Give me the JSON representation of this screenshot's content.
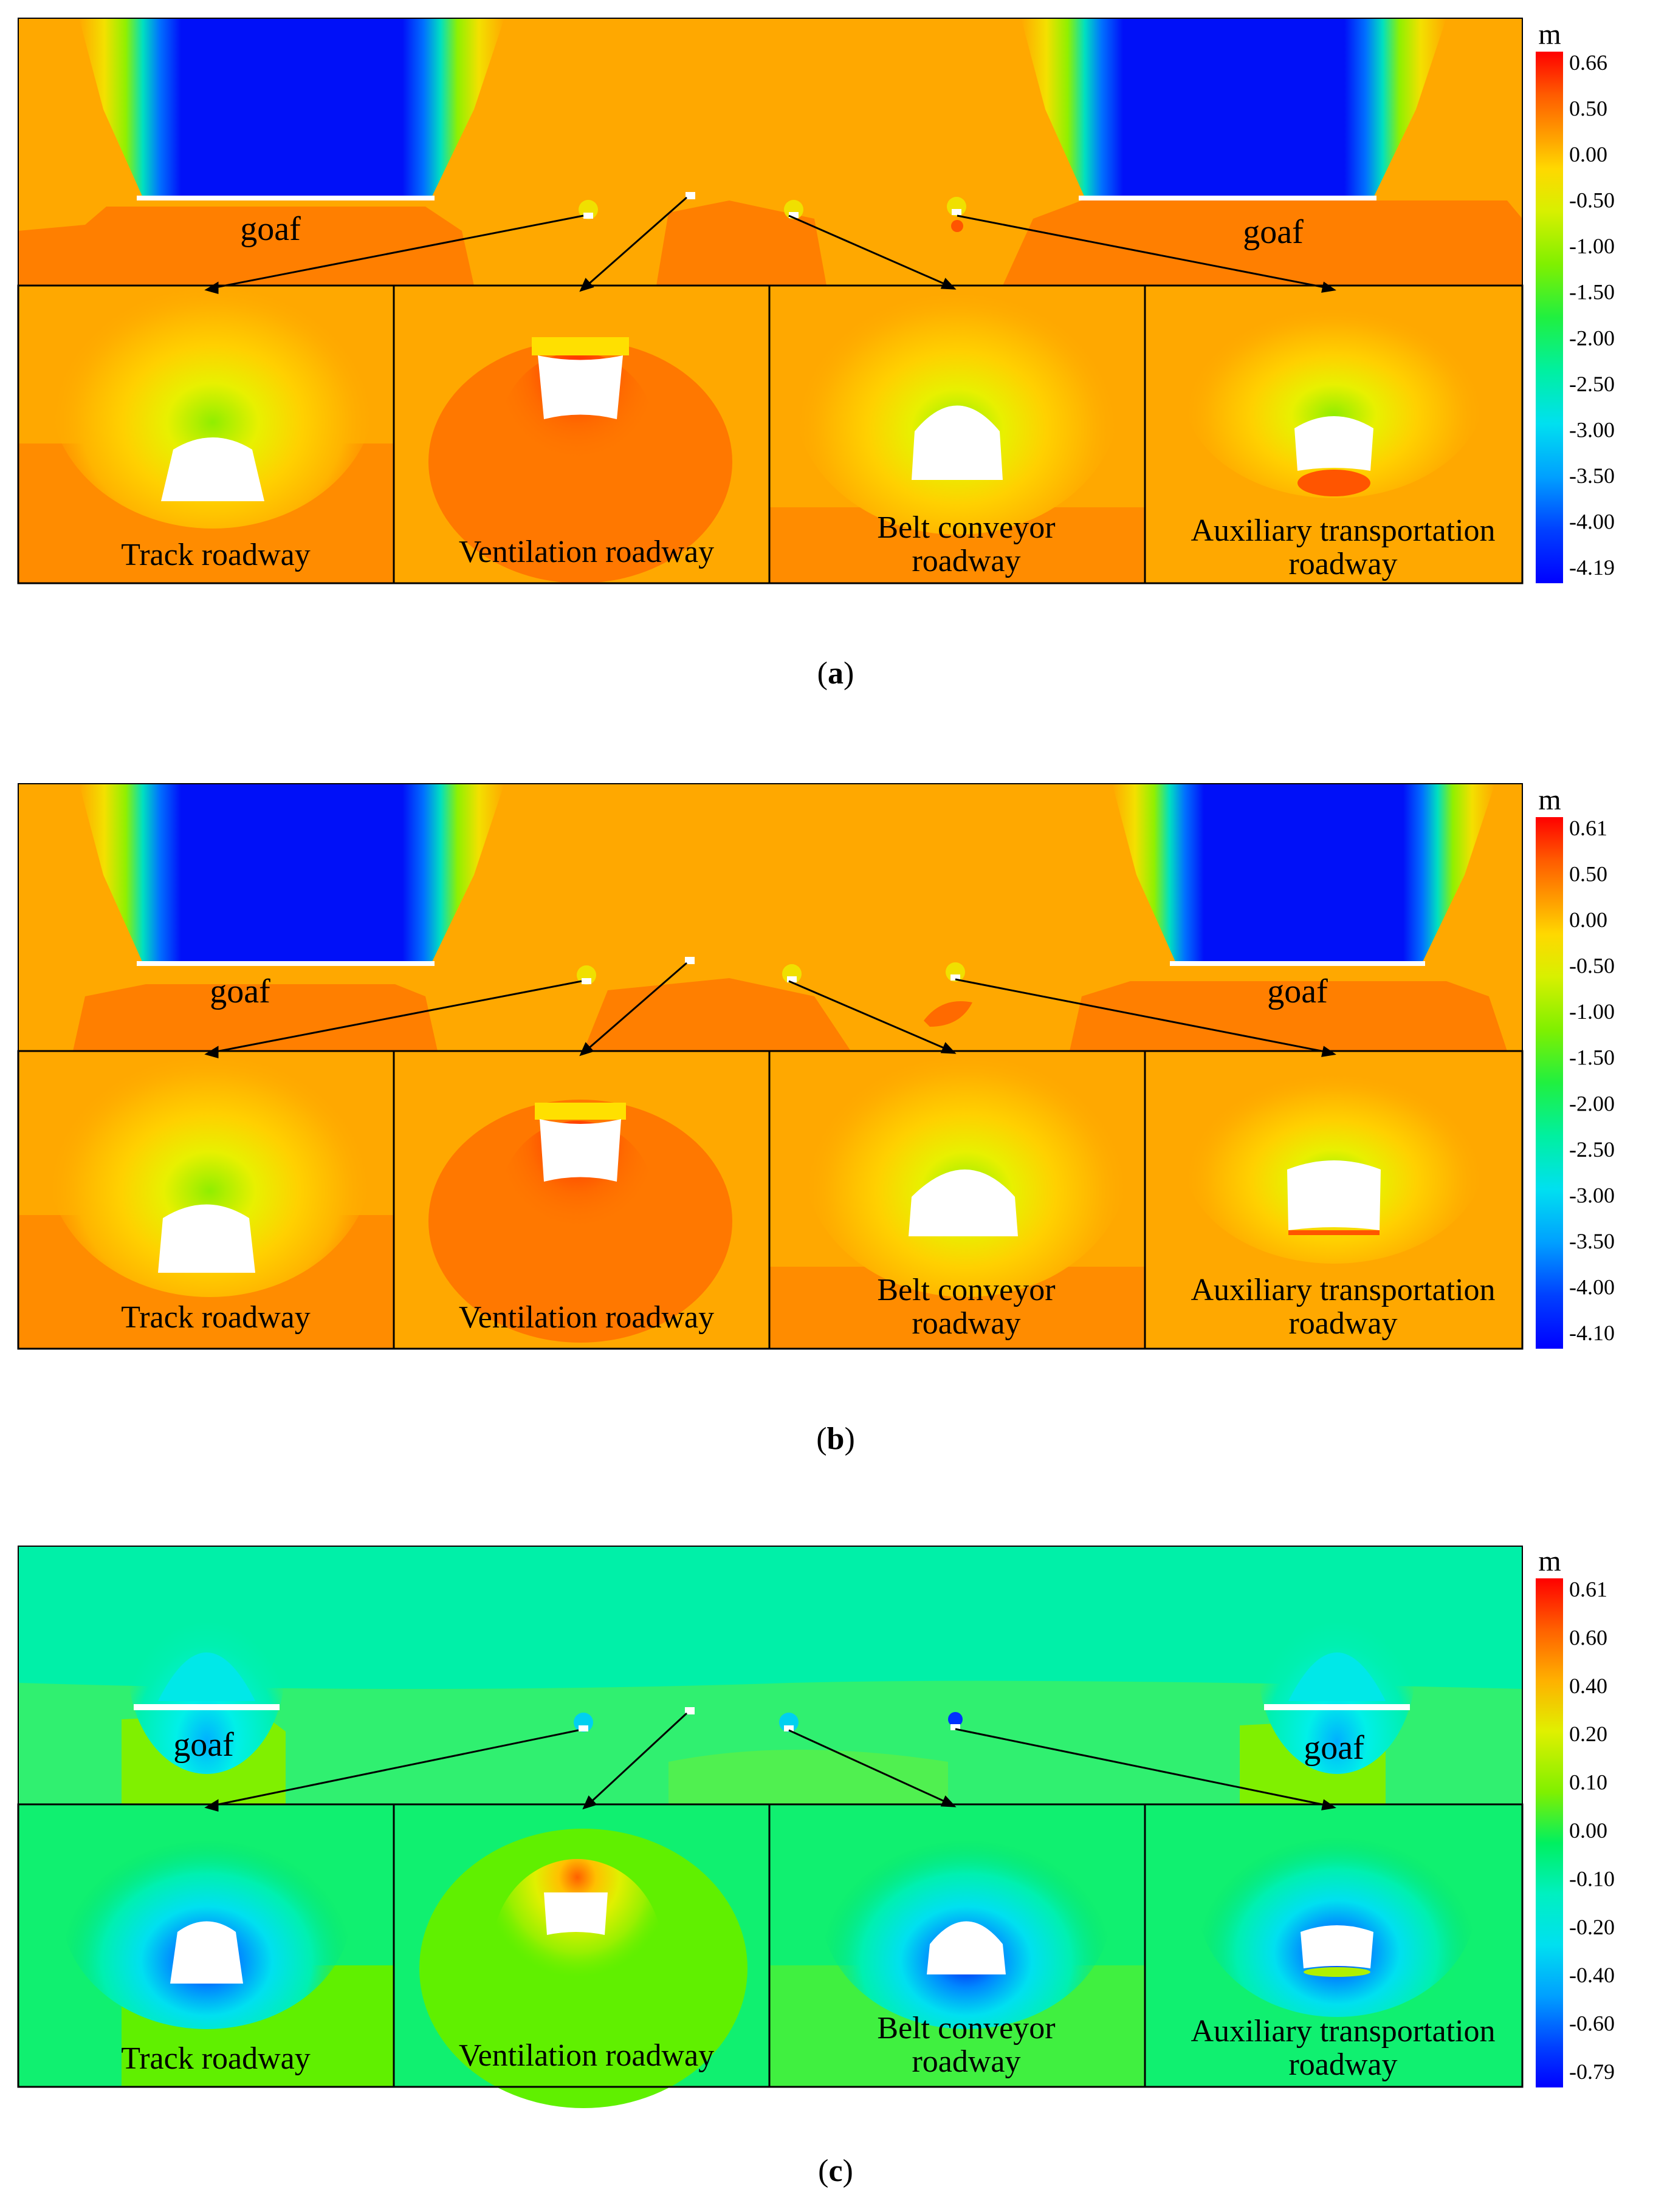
{
  "panels": [
    {
      "id": "a",
      "caption": "(a)",
      "caption_letter": "a",
      "scheme": "warm",
      "colorbar": {
        "unit": "m",
        "ticks": [
          "0.66",
          "0.50",
          "0.00",
          "-0.50",
          "-1.00",
          "-1.50",
          "-2.00",
          "-2.50",
          "-3.00",
          "-3.50",
          "-4.00",
          "-4.19"
        ]
      },
      "goaf_labels": [
        "goaf",
        "goaf"
      ],
      "insets": [
        {
          "label_lines": [
            "Track roadway"
          ]
        },
        {
          "label_lines": [
            "Ventilation roadway"
          ]
        },
        {
          "label_lines": [
            "Belt conveyor",
            "roadway"
          ]
        },
        {
          "label_lines": [
            "Auxiliary transportation",
            "roadway"
          ]
        }
      ]
    },
    {
      "id": "b",
      "caption": "(b)",
      "caption_letter": "b",
      "scheme": "warm",
      "colorbar": {
        "unit": "m",
        "ticks": [
          "0.61",
          "0.50",
          "0.00",
          "-0.50",
          "-1.00",
          "-1.50",
          "-2.00",
          "-2.50",
          "-3.00",
          "-3.50",
          "-4.00",
          "-4.10"
        ]
      },
      "goaf_labels": [
        "goaf",
        "goaf"
      ],
      "insets": [
        {
          "label_lines": [
            "Track roadway"
          ]
        },
        {
          "label_lines": [
            "Ventilation roadway"
          ]
        },
        {
          "label_lines": [
            "Belt conveyor",
            "roadway"
          ]
        },
        {
          "label_lines": [
            "Auxiliary transportation",
            "roadway"
          ]
        }
      ]
    },
    {
      "id": "c",
      "caption": "(c)",
      "caption_letter": "c",
      "scheme": "cool",
      "colorbar": {
        "unit": "m",
        "ticks": [
          "0.61",
          "0.60",
          "0.40",
          "0.20",
          "0.10",
          "0.00",
          "-0.10",
          "-0.20",
          "-0.40",
          "-0.60",
          "-0.79"
        ]
      },
      "goaf_labels": [
        "goaf",
        "goaf"
      ],
      "insets": [
        {
          "label_lines": [
            "Track roadway"
          ]
        },
        {
          "label_lines": [
            "Ventilation roadway"
          ]
        },
        {
          "label_lines": [
            "Belt conveyor",
            "roadway"
          ]
        },
        {
          "label_lines": [
            "Auxiliary transportation",
            "roadway"
          ]
        }
      ]
    }
  ],
  "colors": {
    "warm_colorbar": [
      "#ff0000",
      "#ff3a00",
      "#ff6a00",
      "#ff9800",
      "#ffc400",
      "#f0e000",
      "#b8f000",
      "#7ef000",
      "#3cf03c",
      "#00f0a0",
      "#00e8e8",
      "#00b0ff",
      "#0060ff",
      "#0000ff"
    ],
    "cool_colorbar": [
      "#ff0000",
      "#ff5a00",
      "#ff9a00",
      "#ffd000",
      "#c8f000",
      "#7af000",
      "#00f050",
      "#00f0b8",
      "#00e0f0",
      "#0090ff",
      "#0030ff",
      "#0000ff"
    ]
  }
}
